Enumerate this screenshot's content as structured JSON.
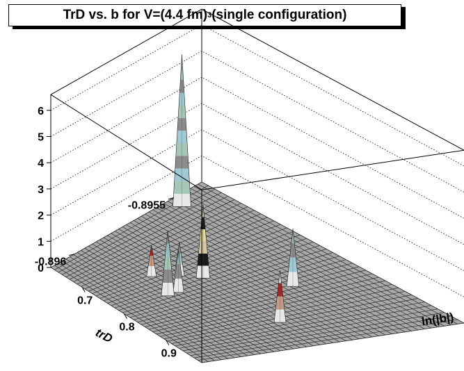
{
  "title": {
    "prefix": "TrD vs. b for V=(4.4 fm)",
    "sup": "3",
    "suffix": " (single configuration)"
  },
  "chart_data": {
    "type": "surface3d",
    "title": "TrD vs. b for V=(4.4 fm)^3 (single configuration)",
    "xlabel": "ln(|b|)",
    "ylabel": "trD",
    "x_ticks": [
      "0.7",
      "0.8",
      "0.9"
    ],
    "y_ticks": [
      "-0.8955",
      "-0.896"
    ],
    "z_ticks": [
      "0",
      "1",
      "2",
      "3",
      "4",
      "5",
      "6"
    ],
    "zlim": [
      0,
      6.6
    ],
    "grid": true,
    "peaks": [
      {
        "x": 0.643,
        "y": -0.89552,
        "z": 5.8
      },
      {
        "x": 0.737,
        "y": -0.8959,
        "z": 1.2
      },
      {
        "x": 0.757,
        "y": -0.89583,
        "z": 1.3
      },
      {
        "x": 0.777,
        "y": -0.89578,
        "z": 2.8
      },
      {
        "x": 0.79,
        "y": -0.8959,
        "z": 1.6
      },
      {
        "x": 0.79,
        "y": -0.89594,
        "z": 2.5
      },
      {
        "x": 0.845,
        "y": -0.8956,
        "z": 2.2
      },
      {
        "x": 0.915,
        "y": -0.89578,
        "z": 2.0
      }
    ],
    "palette": [
      "#1a1a1a",
      "#8c8c8c",
      "#e8e8e8",
      "#d6c9a0",
      "#a6c7b5",
      "#c49a86",
      "#e6dd9a",
      "#9fc9d3",
      "#b02020"
    ]
  }
}
